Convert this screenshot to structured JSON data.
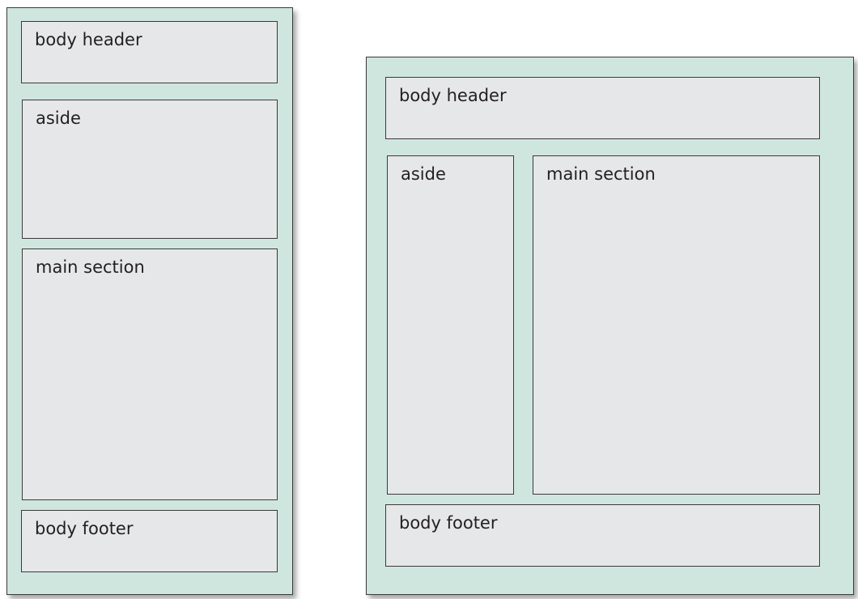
{
  "colors": {
    "panel_background": "#cfe6de",
    "box_background": "#e6e7e9",
    "border": "#3a3a3a",
    "text": "#231f20"
  },
  "narrow_layout": {
    "header": "body header",
    "aside": "aside",
    "main": "main section",
    "footer": "body footer"
  },
  "wide_layout": {
    "header": "body header",
    "aside": "aside",
    "main": "main section",
    "footer": "body footer"
  }
}
